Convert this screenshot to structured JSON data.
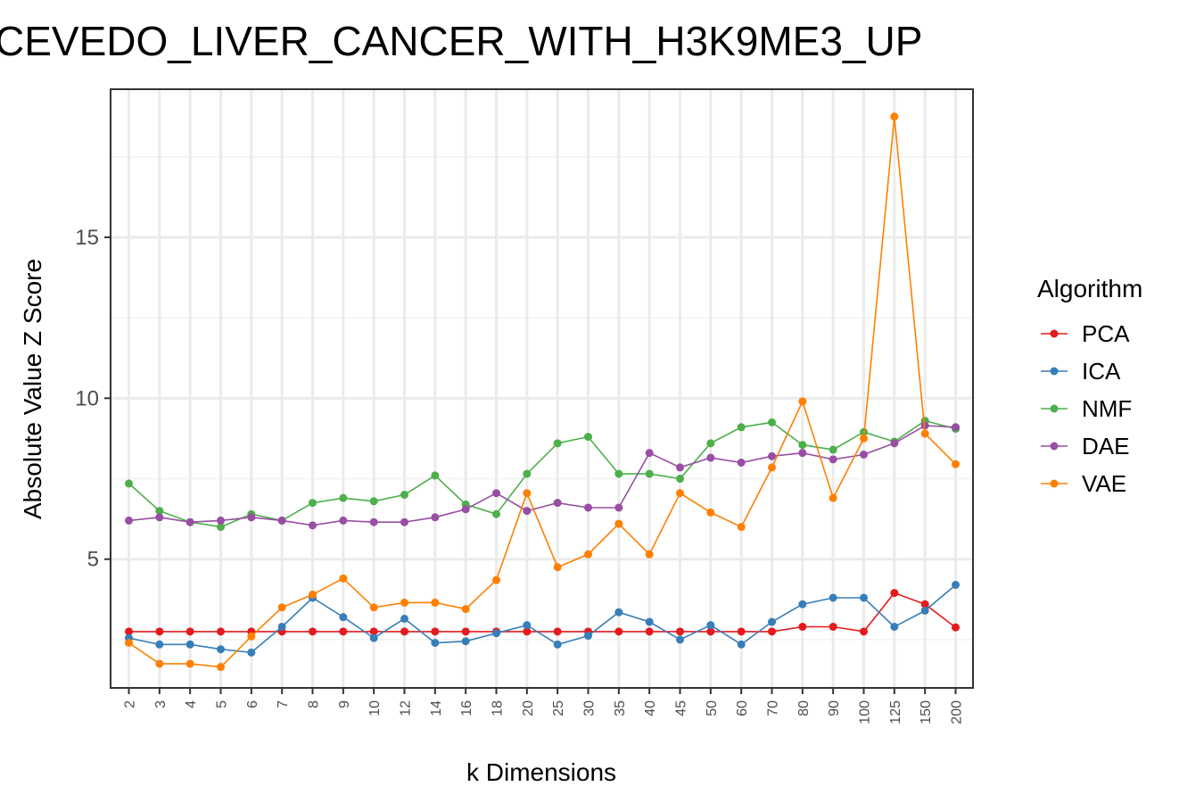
{
  "chart_data": {
    "type": "line",
    "title": "CEVEDO_LIVER_CANCER_WITH_H3K9ME3_UP",
    "xlabel": "k Dimensions",
    "ylabel": "Absolute Value Z Score",
    "categories": [
      "2",
      "3",
      "4",
      "5",
      "6",
      "7",
      "8",
      "9",
      "10",
      "12",
      "14",
      "16",
      "18",
      "20",
      "25",
      "30",
      "35",
      "40",
      "45",
      "50",
      "60",
      "70",
      "80",
      "90",
      "100",
      "125",
      "150",
      "200"
    ],
    "yticks": [
      5,
      10,
      15
    ],
    "ylim": [
      1.0,
      19.6
    ],
    "grid": true,
    "legend": {
      "title": "Algorithm",
      "position": "right"
    },
    "series": [
      {
        "name": "PCA",
        "color": "#e41a1c",
        "values": [
          2.75,
          2.75,
          2.75,
          2.75,
          2.75,
          2.75,
          2.75,
          2.75,
          2.75,
          2.75,
          2.75,
          2.75,
          2.75,
          2.75,
          2.75,
          2.75,
          2.75,
          2.75,
          2.75,
          2.75,
          2.75,
          2.75,
          2.9,
          2.9,
          2.75,
          3.95,
          3.6,
          2.88
        ]
      },
      {
        "name": "ICA",
        "color": "#377eb8",
        "values": [
          2.55,
          2.35,
          2.35,
          2.2,
          2.1,
          2.9,
          3.8,
          3.2,
          2.55,
          3.15,
          2.4,
          2.45,
          2.7,
          2.95,
          2.35,
          2.62,
          3.35,
          3.05,
          2.5,
          2.95,
          2.35,
          3.05,
          3.6,
          3.8,
          3.8,
          2.9,
          3.4,
          4.2
        ]
      },
      {
        "name": "NMF",
        "color": "#4daf4a",
        "values": [
          7.35,
          6.5,
          6.15,
          6.0,
          6.4,
          6.2,
          6.75,
          6.9,
          6.8,
          7.0,
          7.6,
          6.7,
          6.4,
          7.65,
          8.6,
          8.8,
          7.65,
          7.65,
          7.5,
          8.6,
          9.1,
          9.25,
          8.55,
          8.4,
          8.95,
          8.65,
          9.3,
          9.05
        ]
      },
      {
        "name": "DAE",
        "color": "#984ea3",
        "values": [
          6.2,
          6.3,
          6.15,
          6.2,
          6.3,
          6.2,
          6.05,
          6.2,
          6.15,
          6.15,
          6.3,
          6.55,
          7.05,
          6.5,
          6.75,
          6.6,
          6.6,
          8.3,
          7.85,
          8.15,
          8.0,
          8.2,
          8.3,
          8.1,
          8.25,
          8.6,
          9.15,
          9.1
        ]
      },
      {
        "name": "VAE",
        "color": "#ff7f00",
        "values": [
          2.4,
          1.75,
          1.75,
          1.65,
          2.6,
          3.5,
          3.9,
          4.4,
          3.5,
          3.65,
          3.65,
          3.45,
          4.35,
          7.05,
          4.75,
          5.15,
          6.1,
          5.15,
          7.05,
          6.45,
          6.0,
          7.85,
          9.9,
          6.9,
          8.75,
          18.75,
          8.9,
          7.95
        ]
      }
    ]
  }
}
